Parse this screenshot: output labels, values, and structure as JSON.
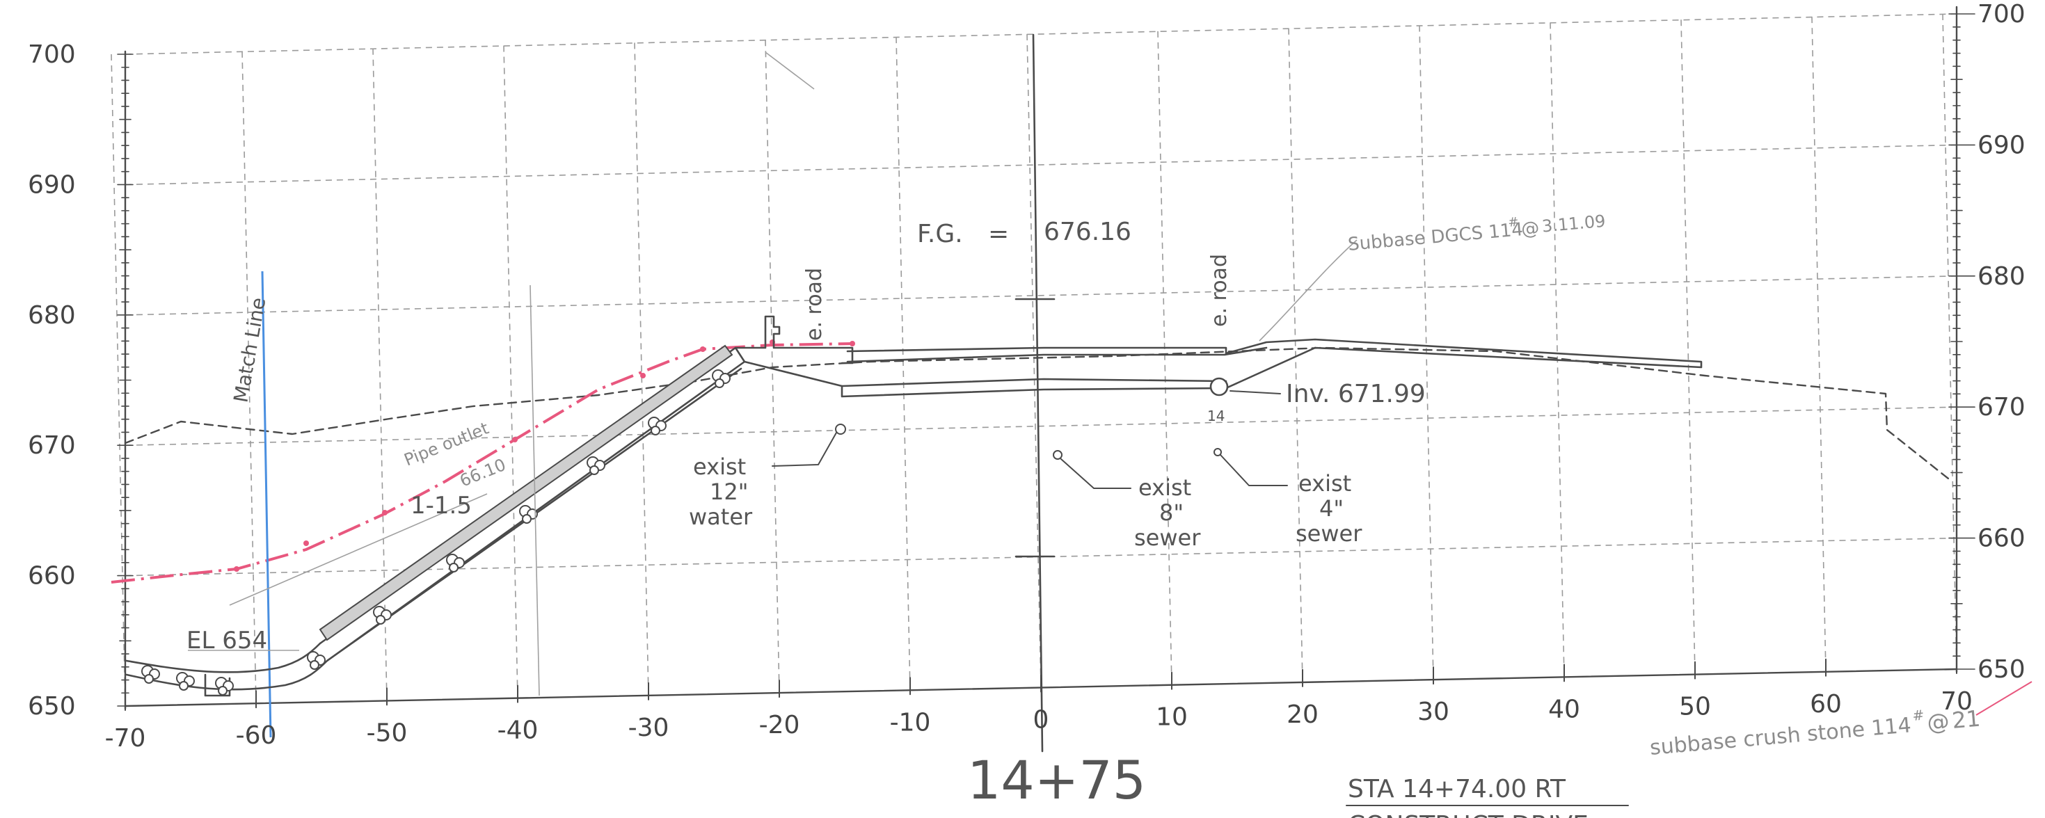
{
  "left_elevations": [
    "700",
    "690",
    "680",
    "670",
    "660",
    "650"
  ],
  "right_elevations": [
    "700",
    "690",
    "680",
    "670",
    "660",
    "650"
  ],
  "offsets": [
    "-70",
    "-60",
    "-50",
    "-40",
    "-30",
    "-20",
    "-10",
    "0",
    "10",
    "20",
    "30",
    "40",
    "50",
    "60",
    "70"
  ],
  "station_title": "14+75",
  "station_caption": "STA 14+74.00 RT",
  "station_subcaption": "CONSTRUCT DRIVE",
  "finish_grade": {
    "label": "F.G.",
    "eq": "=",
    "value": "676.16"
  },
  "invert": "Inv. 671.99",
  "el_label": "EL 654",
  "slope_label": "1-1.5",
  "road_label_left": "e. road",
  "road_label_right": "e. road",
  "match_line": "Match Line",
  "pipe_outlet": "Pipe outlet",
  "pipe_outlet_el": "66.10",
  "exist_water": [
    "exist",
    "12\"",
    "water"
  ],
  "exist_sewer_8": [
    "exist",
    "8\"",
    "sewer"
  ],
  "exist_sewer_4": [
    "exist",
    "4\"",
    "sewer"
  ],
  "subbase_top": "Subbase DGCS 114",
  "subbase_top_suffix": "#",
  "subbase_top_sep": "@",
  "subbase_top_date": "3.11.09",
  "subbase_bottom": "subbase crush stone 114",
  "subbase_bottom_suffix": "#",
  "subbase_bottom_sep": "@",
  "subbase_bottom_end": "21",
  "pipe_size_small": "14",
  "colors": {
    "ink": "#4a4a4a",
    "grid": "#9a9a9a",
    "pink": "#e8577e",
    "blue": "#4a8fe0",
    "pencil": "#8c8c8c"
  }
}
